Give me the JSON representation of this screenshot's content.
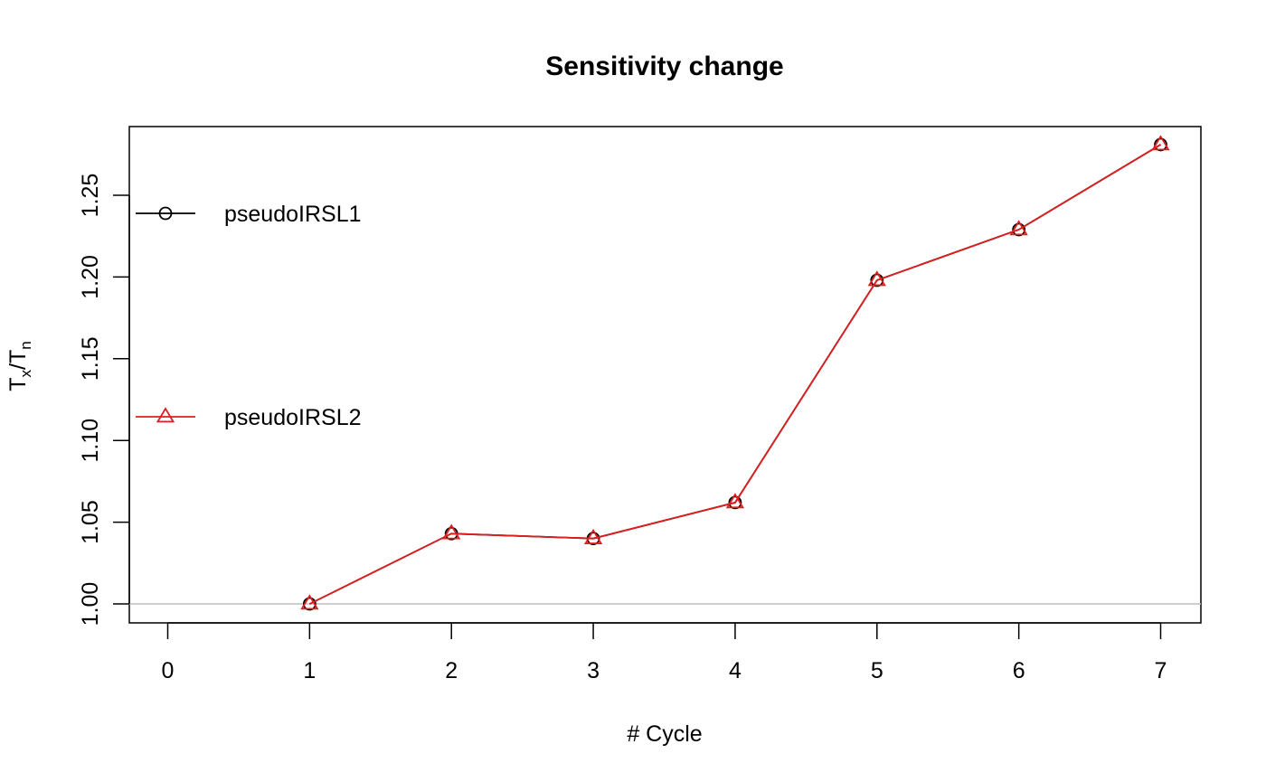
{
  "chart_data": {
    "type": "line",
    "title": "Sensitivity change",
    "xlabel": "# Cycle",
    "ylabel": {
      "main": "T",
      "sub1": "x",
      "sep": "/T",
      "sub2": "n"
    },
    "xlim": [
      0,
      7
    ],
    "ylim": [
      0.99,
      1.29
    ],
    "x_ticks": [
      0,
      1,
      2,
      3,
      4,
      5,
      6,
      7
    ],
    "x_tick_labels": [
      "0",
      "1",
      "2",
      "3",
      "4",
      "5",
      "6",
      "7"
    ],
    "y_ticks": [
      1.0,
      1.05,
      1.1,
      1.15,
      1.2,
      1.25
    ],
    "y_tick_labels": [
      "1.00",
      "1.05",
      "1.10",
      "1.15",
      "1.20",
      "1.25"
    ],
    "reference_line": {
      "y": 1.0,
      "color": "#bebebe"
    },
    "grid": false,
    "legend_position": "left",
    "series": [
      {
        "name": "pseudoIRSL1",
        "color": "#000000",
        "marker": "circle",
        "x": [
          1,
          2,
          3,
          4,
          5,
          6,
          7
        ],
        "values": [
          1.0,
          1.043,
          1.04,
          1.062,
          1.198,
          1.229,
          1.281
        ]
      },
      {
        "name": "pseudoIRSL2",
        "color": "#df1f1f",
        "marker": "triangle",
        "x": [
          1,
          2,
          3,
          4,
          5,
          6,
          7
        ],
        "values": [
          1.0,
          1.043,
          1.04,
          1.062,
          1.198,
          1.229,
          1.281
        ]
      }
    ]
  }
}
